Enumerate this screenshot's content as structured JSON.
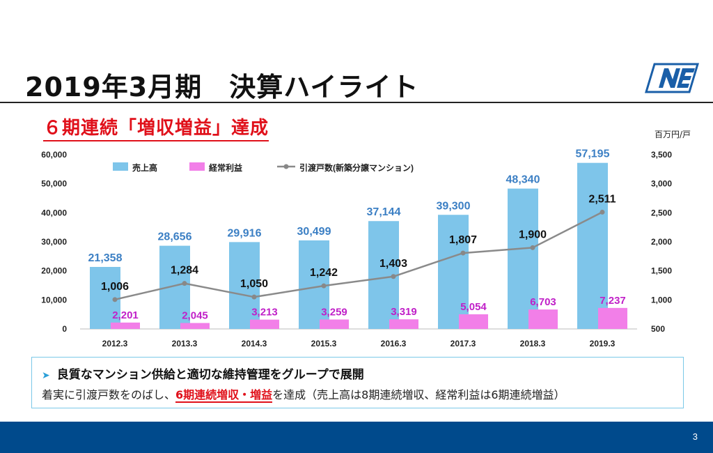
{
  "header": {
    "title": "2019年3月期　決算ハイライト",
    "logo_text": "NE"
  },
  "subtitle": "６期連続「増収増益」達成",
  "unit_label": "百万円/戸",
  "chart_data": {
    "type": "bar",
    "categories": [
      "2012.3",
      "2013.3",
      "2014.3",
      "2015.3",
      "2016.3",
      "2017.3",
      "2018.3",
      "2019.3"
    ],
    "series": [
      {
        "name": "売上高",
        "type": "bar",
        "axis": "left",
        "color": "#7ec5ea",
        "label_color": "#3b7fc4",
        "values": [
          21358,
          28656,
          29916,
          30499,
          37144,
          39300,
          48340,
          57195
        ],
        "labels": [
          "21,358",
          "28,656",
          "29,916",
          "30,499",
          "37,144",
          "39,300",
          "48,340",
          "57,195"
        ]
      },
      {
        "name": "経常利益",
        "type": "bar",
        "axis": "left",
        "color": "#f27fe8",
        "label_color": "#c020c8",
        "values": [
          2201,
          2045,
          3213,
          3259,
          3319,
          5054,
          6703,
          7237
        ],
        "labels": [
          "2,201",
          "2,045",
          "3,213",
          "3,259",
          "3,319",
          "5,054",
          "6,703",
          "7,237"
        ]
      },
      {
        "name": "引渡戸数(新築分譲マンション)",
        "type": "line",
        "axis": "right",
        "color": "#8a8a8a",
        "label_color": "#111",
        "values": [
          1006,
          1284,
          1050,
          1242,
          1403,
          1807,
          1900,
          2511
        ],
        "labels": [
          "1,006",
          "1,284",
          "1,050",
          "1,242",
          "1,403",
          "1,807",
          "1,900",
          "2,511"
        ]
      }
    ],
    "y_left": {
      "min": 0,
      "max": 60000,
      "ticks": [
        "0",
        "10,000",
        "20,000",
        "30,000",
        "40,000",
        "50,000",
        "60,000"
      ]
    },
    "y_right": {
      "min": 500,
      "max": 3500,
      "ticks": [
        "500",
        "1,000",
        "1,500",
        "2,000",
        "2,500",
        "3,000",
        "3,500"
      ]
    },
    "legend_position": "top-left",
    "grid": false
  },
  "info": {
    "heading": "良質なマンション供給と適切な維持管理をグループで展開",
    "body_prefix": "着実に引渡戸数をのばし、",
    "body_highlight": "6期連続増収・増益",
    "body_suffix": "を達成（売上高は8期連続増収、経常利益は6期連続増益）"
  },
  "footer": {
    "page_number": "3"
  },
  "colors": {
    "accent_red": "#e0101a",
    "footer_blue": "#004a8c",
    "box_border": "#7ac8e8"
  }
}
